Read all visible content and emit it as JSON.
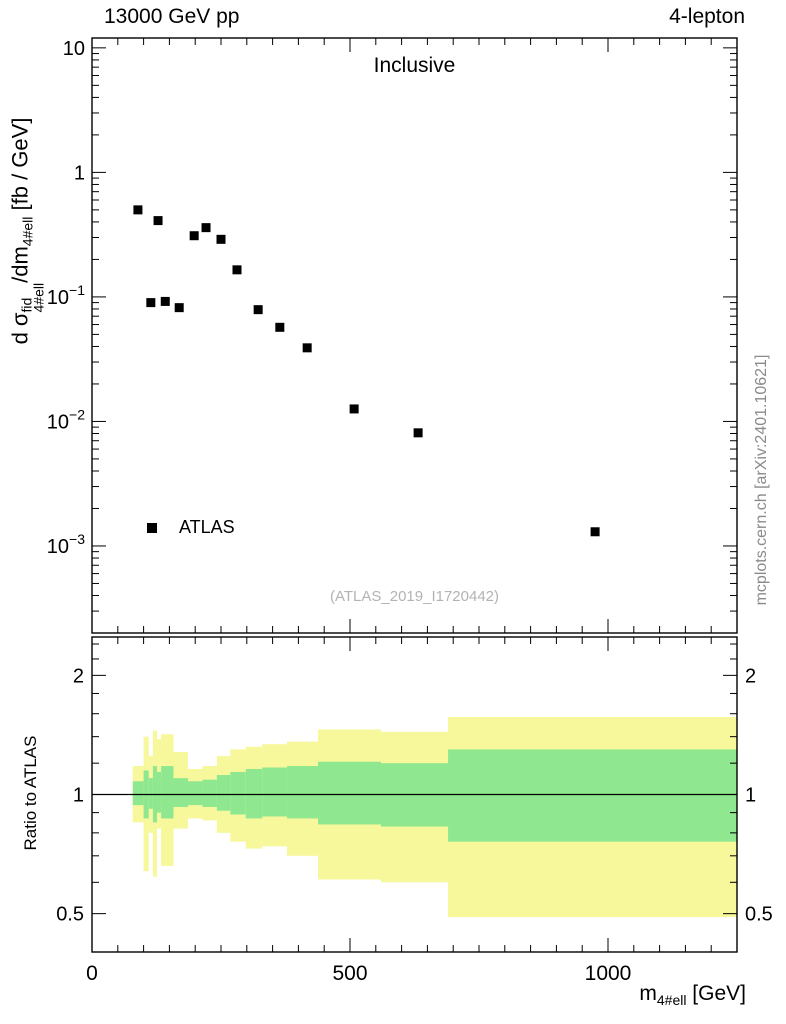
{
  "header": {
    "left": "13000 GeV pp",
    "right": "4-lepton"
  },
  "main_panel": {
    "title": "Inclusive",
    "watermark": "(ATLAS_2019_I1720442)",
    "legend_label": "ATLAS",
    "ylabel": {
      "pre": "d ",
      "sigma": "σ",
      "sup": "fid",
      "sub": "4#ell",
      "mid": "/dm",
      "sub2": "4#ell",
      "units": " [fb / GeV]"
    }
  },
  "ratio_panel": {
    "ylabel": "Ratio to ATLAS"
  },
  "xaxis": {
    "title_base": "m",
    "title_sub": "4#ell",
    "title_rest": " [GeV]"
  },
  "side_caption": "mcplots.cern.ch [arXiv:2401.10621]",
  "chart_data": {
    "type": "scatter",
    "title": "Inclusive",
    "xlabel": "m_4#ell [GeV]",
    "ylabel": "d sigma^fid_4#ell/dm_4#ell [fb / GeV]",
    "ratio_ylabel": "Ratio to ATLAS",
    "xlim": [
      0,
      1250
    ],
    "x_major_ticks": [
      {
        "value": 0,
        "label": "0"
      },
      {
        "value": 500,
        "label": "500"
      },
      {
        "value": 1000,
        "label": "1000"
      }
    ],
    "x_minor_step": 50,
    "main": {
      "yscale": "log",
      "ylim": [
        0.0002,
        12
      ],
      "y_major_ticks": [
        {
          "value": 10,
          "mantissa": "10",
          "exp": ""
        },
        {
          "value": 1,
          "mantissa": "1",
          "exp": ""
        },
        {
          "value": 0.1,
          "mantissa": "10",
          "exp": "−1"
        },
        {
          "value": 0.01,
          "mantissa": "10",
          "exp": "−2"
        },
        {
          "value": 0.001,
          "mantissa": "10",
          "exp": "−3"
        }
      ],
      "series": [
        {
          "name": "ATLAS",
          "marker": "filled-square",
          "color": "#000000",
          "points": [
            [
              89,
              0.5
            ],
            [
              114,
              0.09
            ],
            [
              128,
              0.41
            ],
            [
              142,
              0.092
            ],
            [
              169,
              0.082
            ],
            [
              198,
              0.31
            ],
            [
              221,
              0.36
            ],
            [
              250,
              0.29
            ],
            [
              281,
              0.165
            ],
            [
              322,
              0.079
            ],
            [
              364,
              0.057
            ],
            [
              417,
              0.039
            ],
            [
              508,
              0.0126
            ],
            [
              632,
              0.0081
            ],
            [
              975,
              0.0013
            ]
          ]
        }
      ]
    },
    "ratio": {
      "yscale": "log",
      "ylim": [
        0.4,
        2.5
      ],
      "reference_value": 1,
      "y_major_ticks": [
        {
          "value": 0.5,
          "label": "0.5"
        },
        {
          "value": 1,
          "label": "1"
        },
        {
          "value": 2,
          "label": "2"
        }
      ],
      "y_minor_ticks": [
        0.4,
        0.6,
        0.7,
        0.8,
        0.9,
        1.2,
        1.4,
        1.6,
        1.8,
        2.2,
        2.4
      ],
      "band_colors": {
        "outer": "#f7f79b",
        "inner": "#8fe88f"
      },
      "bands": [
        {
          "x": [
            79,
            100
          ],
          "outer": [
            0.85,
            1.18
          ],
          "inner": [
            0.94,
            1.08
          ]
        },
        {
          "x": [
            100,
            110
          ],
          "outer": [
            0.64,
            1.4
          ],
          "inner": [
            0.87,
            1.15
          ]
        },
        {
          "x": [
            110,
            118
          ],
          "outer": [
            0.8,
            1.25
          ],
          "inner": [
            0.92,
            1.1
          ]
        },
        {
          "x": [
            118,
            126
          ],
          "outer": [
            0.62,
            1.45
          ],
          "inner": [
            0.85,
            1.18
          ]
        },
        {
          "x": [
            126,
            134
          ],
          "outer": [
            0.82,
            1.38
          ],
          "inner": [
            0.9,
            1.14
          ]
        },
        {
          "x": [
            134,
            158
          ],
          "outer": [
            0.66,
            1.42
          ],
          "inner": [
            0.87,
            1.18
          ]
        },
        {
          "x": [
            158,
            186
          ],
          "outer": [
            0.82,
            1.28
          ],
          "inner": [
            0.93,
            1.1
          ]
        },
        {
          "x": [
            186,
            214
          ],
          "outer": [
            0.87,
            1.16
          ],
          "inner": [
            0.94,
            1.08
          ]
        },
        {
          "x": [
            214,
            242
          ],
          "outer": [
            0.86,
            1.18
          ],
          "inner": [
            0.93,
            1.09
          ]
        },
        {
          "x": [
            242,
            268
          ],
          "outer": [
            0.8,
            1.25
          ],
          "inner": [
            0.91,
            1.12
          ]
        },
        {
          "x": [
            268,
            298
          ],
          "outer": [
            0.76,
            1.3
          ],
          "inner": [
            0.89,
            1.14
          ]
        },
        {
          "x": [
            298,
            330
          ],
          "outer": [
            0.73,
            1.32
          ],
          "inner": [
            0.87,
            1.16
          ]
        },
        {
          "x": [
            330,
            378
          ],
          "outer": [
            0.74,
            1.34
          ],
          "inner": [
            0.88,
            1.17
          ]
        },
        {
          "x": [
            378,
            438
          ],
          "outer": [
            0.7,
            1.36
          ],
          "inner": [
            0.87,
            1.18
          ]
        },
        {
          "x": [
            438,
            560
          ],
          "outer": [
            0.61,
            1.46
          ],
          "inner": [
            0.84,
            1.21
          ]
        },
        {
          "x": [
            560,
            690
          ],
          "outer": [
            0.6,
            1.44
          ],
          "inner": [
            0.83,
            1.2
          ]
        },
        {
          "x": [
            690,
            1250
          ],
          "outer": [
            0.49,
            1.57
          ],
          "inner": [
            0.76,
            1.3
          ]
        }
      ]
    },
    "watermark": "(ATLAS_2019_I1720442)",
    "side_caption": "mcplots.cern.ch [arXiv:2401.10621]"
  }
}
